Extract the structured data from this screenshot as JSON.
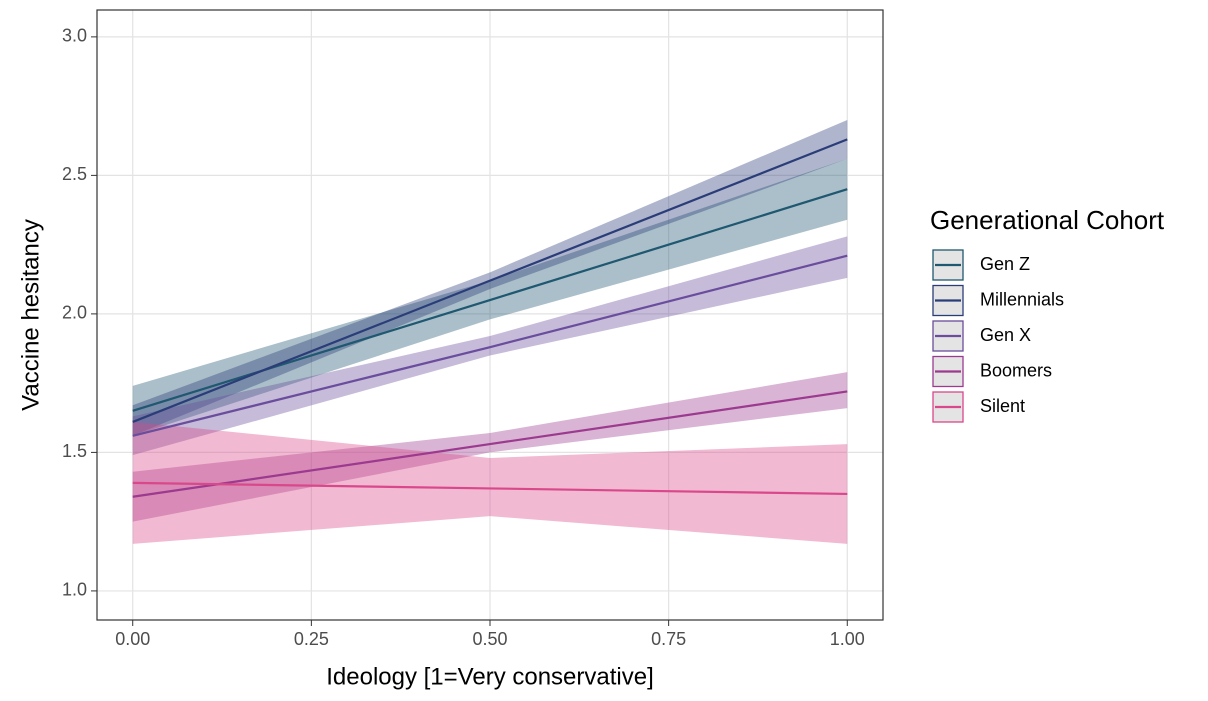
{
  "chart_data": {
    "type": "line",
    "x_label": "Ideology [1=Very conservative]",
    "y_label": "Vaccine hesitancy",
    "legend_title": "Generational Cohort",
    "x": [
      0,
      0.5,
      1
    ],
    "xlim": [
      -0.05,
      1.05
    ],
    "ylim": [
      0.895,
      3.097
    ],
    "xticks": [
      {
        "value": 0,
        "label": "0.00"
      },
      {
        "value": 0.25,
        "label": "0.25"
      },
      {
        "value": 0.5,
        "label": "0.50"
      },
      {
        "value": 0.75,
        "label": "0.75"
      },
      {
        "value": 1,
        "label": "1.00"
      }
    ],
    "yticks": [
      {
        "value": 1,
        "label": "1.0"
      },
      {
        "value": 1.5,
        "label": "1.5"
      },
      {
        "value": 2,
        "label": "2.0"
      },
      {
        "value": 2.5,
        "label": "2.5"
      },
      {
        "value": 3,
        "label": "3.0"
      }
    ],
    "grid": true,
    "legend_position": "right",
    "series": [
      {
        "name": "Gen Z",
        "color": "#1f5870",
        "values": [
          1.65,
          2.05,
          2.45
        ],
        "lower": [
          1.56,
          1.98,
          2.34
        ],
        "upper": [
          1.74,
          2.12,
          2.56
        ]
      },
      {
        "name": "Millennials",
        "color": "#2b3d78",
        "values": [
          1.61,
          2.12,
          2.63
        ],
        "lower": [
          1.56,
          2.09,
          2.56
        ],
        "upper": [
          1.67,
          2.15,
          2.7
        ]
      },
      {
        "name": "Gen X",
        "color": "#6a4d9c",
        "values": [
          1.56,
          1.88,
          2.21
        ],
        "lower": [
          1.49,
          1.85,
          2.13
        ],
        "upper": [
          1.63,
          1.92,
          2.28
        ]
      },
      {
        "name": "Boomers",
        "color": "#9b3a8e",
        "values": [
          1.34,
          1.53,
          1.72
        ],
        "lower": [
          1.25,
          1.5,
          1.66
        ],
        "upper": [
          1.43,
          1.57,
          1.79
        ]
      },
      {
        "name": "Silent",
        "color": "#d9488a",
        "values": [
          1.39,
          1.37,
          1.35
        ],
        "lower": [
          1.17,
          1.27,
          1.17
        ],
        "upper": [
          1.61,
          1.48,
          1.53
        ]
      }
    ]
  }
}
